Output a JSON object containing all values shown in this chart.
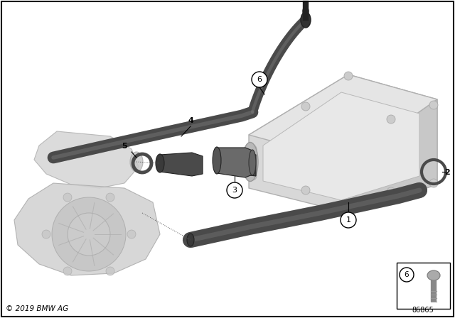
{
  "bg_color": "#ffffff",
  "part_dark": "#4a4a4a",
  "part_mid": "#6a6a6a",
  "part_light": "#8a8a8a",
  "ghost_fill": "#d4d4d4",
  "ghost_edge": "#aaaaaa",
  "ghost_fill2": "#e0e0e0",
  "label_line": "#000000",
  "copyright": "© 2019 BMW AG",
  "diagram_id": "86865",
  "fig_w": 6.4,
  "fig_h": 4.48,
  "dpi": 100
}
